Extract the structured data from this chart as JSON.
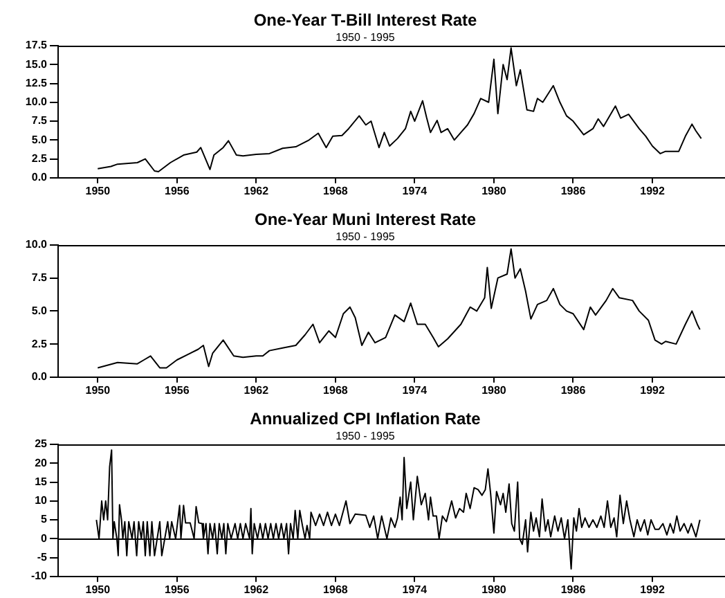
{
  "chart_data": [
    {
      "type": "line",
      "title": "One-Year T-Bill Interest Rate",
      "subtitle": "1950 - 1995",
      "color": "#000000",
      "x": [
        1950.0,
        1951,
        1951.5,
        1953,
        1953.6,
        1954.3,
        1954.6,
        1955.5,
        1956.5,
        1957.5,
        1957.8,
        1958.5,
        1958.8,
        1959.5,
        1959.9,
        1960.5,
        1961,
        1962,
        1963,
        1964,
        1965,
        1966,
        1966.7,
        1967.3,
        1967.8,
        1968.5,
        1969,
        1969.8,
        1970.3,
        1970.7,
        1971.3,
        1971.7,
        1972.1,
        1972.7,
        1973.3,
        1973.7,
        1974,
        1974.6,
        1974.9,
        1975.2,
        1975.7,
        1976,
        1976.5,
        1977,
        1977.5,
        1978,
        1978.5,
        1979,
        1979.6,
        1980.0,
        1980.3,
        1980.7,
        1981.0,
        1981.3,
        1981.7,
        1982,
        1982.5,
        1983,
        1983.3,
        1983.7,
        1984.5,
        1985,
        1985.5,
        1986,
        1986.8,
        1987.5,
        1987.9,
        1988.3,
        1989.2,
        1989.6,
        1990.2,
        1991,
        1991.5,
        1992,
        1992.6,
        1993,
        1994,
        1994.5,
        1995,
        1995.3,
        1995.5,
        1995.7
      ],
      "values": [
        1.2,
        1.5,
        1.8,
        2.0,
        2.5,
        0.9,
        0.8,
        2.0,
        3.0,
        3.4,
        4.0,
        1.1,
        3.0,
        4.0,
        4.9,
        3.0,
        2.9,
        3.1,
        3.2,
        3.9,
        4.1,
        5.0,
        5.9,
        4.0,
        5.5,
        5.6,
        6.5,
        8.2,
        7.0,
        7.5,
        4.0,
        6.0,
        4.2,
        5.2,
        6.5,
        8.8,
        7.5,
        10.2,
        8.0,
        6.0,
        7.6,
        6.0,
        6.5,
        5.0,
        6.0,
        7.0,
        8.5,
        10.5,
        10.0,
        15.7,
        8.5,
        15.0,
        13.0,
        17.2,
        12.2,
        14.3,
        9.0,
        8.8,
        10.5,
        10.0,
        12.2,
        10.0,
        8.2,
        7.5,
        5.7,
        6.5,
        7.8,
        6.8,
        9.5,
        7.9,
        8.4,
        6.5,
        5.5,
        4.2,
        3.2,
        3.5,
        3.5,
        5.5,
        7.1,
        6.2,
        5.7,
        5.2
      ],
      "xlim": [
        1947,
        1997.5
      ],
      "xticks": [
        1950,
        1956,
        1962,
        1968,
        1974,
        1980,
        1986,
        1992
      ],
      "ylim": [
        0,
        17.5
      ],
      "yticks": [
        {
          "value": 0,
          "label": "0.0"
        },
        {
          "value": 2.5,
          "label": "2.5"
        },
        {
          "value": 5,
          "label": "5.0"
        },
        {
          "value": 7.5,
          "label": "7.5"
        },
        {
          "value": 10,
          "label": "10.0"
        },
        {
          "value": 12.5,
          "label": "12.5"
        },
        {
          "value": 15,
          "label": "15.0"
        },
        {
          "value": 17.5,
          "label": "17.5"
        }
      ],
      "grid": false,
      "legend": false
    },
    {
      "type": "line",
      "title": "One-Year Muni Interest Rate",
      "subtitle": "1950 - 1995",
      "color": "#000000",
      "x": [
        1950,
        1951.5,
        1953,
        1953.5,
        1954,
        1954.7,
        1955.2,
        1956,
        1956.8,
        1957.6,
        1958,
        1958.4,
        1958.7,
        1959.5,
        1960.3,
        1961,
        1962,
        1962.5,
        1963,
        1964,
        1965,
        1965.7,
        1966.3,
        1966.8,
        1967.5,
        1968,
        1968.6,
        1969.1,
        1969.5,
        1970,
        1970.5,
        1971,
        1971.8,
        1972.5,
        1973.2,
        1973.7,
        1974.2,
        1974.8,
        1975.4,
        1975.8,
        1976.5,
        1977.5,
        1978.2,
        1978.7,
        1979.3,
        1979.5,
        1979.8,
        1980.3,
        1981,
        1981.3,
        1981.6,
        1982,
        1982.4,
        1982.8,
        1983.3,
        1984,
        1984.5,
        1985,
        1985.5,
        1986,
        1986.8,
        1987.3,
        1987.7,
        1988.5,
        1989,
        1989.5,
        1990.5,
        1991,
        1991.7,
        1992.2,
        1992.7,
        1993,
        1993.8,
        1994.5,
        1995,
        1995.4,
        1995.6
      ],
      "values": [
        0.7,
        1.1,
        1.0,
        1.3,
        1.6,
        0.7,
        0.7,
        1.3,
        1.7,
        2.1,
        2.4,
        0.8,
        1.8,
        2.8,
        1.6,
        1.5,
        1.6,
        1.6,
        2.0,
        2.2,
        2.4,
        3.2,
        4.0,
        2.6,
        3.5,
        3.0,
        4.8,
        5.3,
        4.5,
        2.4,
        3.4,
        2.6,
        3.0,
        4.7,
        4.2,
        5.6,
        4.0,
        4.0,
        3.0,
        2.3,
        2.9,
        4.0,
        5.3,
        5.0,
        6.0,
        8.3,
        5.2,
        7.5,
        7.8,
        9.7,
        7.5,
        8.2,
        6.5,
        4.4,
        5.5,
        5.8,
        6.7,
        5.5,
        5.0,
        4.8,
        3.6,
        5.3,
        4.7,
        5.8,
        6.7,
        6.0,
        5.8,
        5.0,
        4.3,
        2.8,
        2.5,
        2.7,
        2.5,
        4.0,
        5.0,
        4.0,
        3.6
      ],
      "xlim": [
        1947,
        1997.5
      ],
      "xticks": [
        1950,
        1956,
        1962,
        1968,
        1974,
        1980,
        1986,
        1992
      ],
      "ylim": [
        0,
        10
      ],
      "yticks": [
        {
          "value": 0,
          "label": "0.0"
        },
        {
          "value": 2.5,
          "label": "2.5"
        },
        {
          "value": 5,
          "label": "5.0"
        },
        {
          "value": 7.5,
          "label": "7.5"
        },
        {
          "value": 10,
          "label": "10.0"
        }
      ],
      "grid": false,
      "legend": false
    },
    {
      "type": "line",
      "title": "Annualized CPI Inflation Rate",
      "subtitle": "1950 - 1995",
      "color": "#000000",
      "x": [
        1949.9,
        1950.1,
        1950.3,
        1950.45,
        1950.6,
        1950.75,
        1950.9,
        1951.05,
        1951.15,
        1951.25,
        1951.45,
        1951.55,
        1951.65,
        1951.8,
        1951.9,
        1952.05,
        1952.2,
        1952.35,
        1952.6,
        1952.75,
        1952.95,
        1953.1,
        1953.3,
        1953.45,
        1953.6,
        1953.75,
        1953.95,
        1954.1,
        1954.3,
        1954.5,
        1954.7,
        1954.85,
        1955.3,
        1955.45,
        1955.6,
        1955.9,
        1956.2,
        1956.3,
        1956.5,
        1956.65,
        1957,
        1957.3,
        1957.45,
        1957.65,
        1957.9,
        1958,
        1958.2,
        1958.35,
        1958.5,
        1958.7,
        1958.85,
        1959.05,
        1959.2,
        1959.4,
        1959.55,
        1959.7,
        1959.85,
        1960.1,
        1960.4,
        1960.6,
        1960.8,
        1961,
        1961.2,
        1961.5,
        1961.6,
        1961.7,
        1961.85,
        1962.1,
        1962.3,
        1962.5,
        1962.7,
        1962.9,
        1963.1,
        1963.3,
        1963.5,
        1963.7,
        1963.9,
        1964.1,
        1964.3,
        1964.45,
        1964.6,
        1964.8,
        1964.95,
        1965.15,
        1965.3,
        1965.5,
        1965.7,
        1965.85,
        1966.05,
        1966.15,
        1966.5,
        1966.8,
        1967.1,
        1967.4,
        1967.7,
        1968,
        1968.3,
        1968.8,
        1969.1,
        1969.5,
        1970.3,
        1970.6,
        1970.9,
        1971.2,
        1971.5,
        1971.9,
        1972.2,
        1972.5,
        1972.7,
        1972.9,
        1973.05,
        1973.2,
        1973.4,
        1973.7,
        1973.9,
        1974.2,
        1974.5,
        1974.8,
        1975.05,
        1975.2,
        1975.4,
        1975.65,
        1975.85,
        1976.1,
        1976.4,
        1976.8,
        1977.1,
        1977.4,
        1977.7,
        1977.9,
        1978.2,
        1978.5,
        1978.8,
        1979.1,
        1979.35,
        1979.55,
        1979.75,
        1980,
        1980.2,
        1980.5,
        1980.7,
        1980.9,
        1981.15,
        1981.35,
        1981.55,
        1981.8,
        1981.95,
        1982.15,
        1982.4,
        1982.55,
        1982.8,
        1983,
        1983.2,
        1983.45,
        1983.65,
        1983.9,
        1984.1,
        1984.3,
        1984.6,
        1984.85,
        1985.1,
        1985.35,
        1985.6,
        1985.85,
        1986.05,
        1986.25,
        1986.45,
        1986.65,
        1986.9,
        1987.2,
        1987.5,
        1987.8,
        1988.1,
        1988.35,
        1988.6,
        1988.85,
        1989.1,
        1989.3,
        1989.55,
        1989.8,
        1990.05,
        1990.3,
        1990.6,
        1990.85,
        1991.1,
        1991.4,
        1991.65,
        1991.9,
        1992.2,
        1992.5,
        1992.8,
        1993.1,
        1993.35,
        1993.6,
        1993.85,
        1994.1,
        1994.4,
        1994.7,
        1994.95,
        1995.3,
        1995.6
      ],
      "values": [
        5,
        0,
        10,
        5,
        10,
        5,
        19,
        23.5,
        0,
        4.5,
        0,
        -4.5,
        9,
        5,
        0,
        4.5,
        -4.5,
        4.5,
        0,
        4.5,
        -4.5,
        4.5,
        0,
        4.5,
        -4.5,
        4.5,
        -4.5,
        4.5,
        -4.5,
        0,
        4.5,
        -4.5,
        4.5,
        0,
        4.5,
        0,
        8.8,
        0,
        8.8,
        4.2,
        4.2,
        0,
        8.5,
        4.2,
        4,
        0,
        4,
        -4,
        4,
        0,
        4,
        -4,
        4,
        0,
        4,
        -4,
        4,
        0,
        4,
        0,
        4,
        0,
        4,
        0,
        8,
        -4,
        4,
        0,
        4,
        0,
        4,
        0,
        4,
        0,
        4,
        0,
        4,
        0,
        4,
        -4,
        4,
        0,
        7.5,
        0,
        7.5,
        3.5,
        0,
        3.5,
        0,
        7,
        3.5,
        6.5,
        3.5,
        7,
        3.5,
        6.5,
        3.5,
        10,
        4,
        6.5,
        6.2,
        3,
        6,
        0,
        6,
        0,
        5.5,
        3,
        5.5,
        11,
        5,
        21.5,
        8,
        15,
        5,
        16.5,
        9,
        12,
        5,
        11,
        6,
        6,
        0,
        6,
        4.5,
        10,
        5.5,
        8,
        7,
        12,
        8,
        13.5,
        13,
        11.5,
        13,
        18.5,
        12,
        1.5,
        12.5,
        9,
        12,
        7,
        14.5,
        4,
        2,
        15,
        0,
        -1.5,
        5,
        -3.5,
        7,
        2,
        5.5,
        0.5,
        10.5,
        2,
        5,
        0.5,
        6,
        2,
        5.5,
        0,
        5,
        -8,
        5.5,
        2,
        8,
        3,
        5.5,
        3,
        5,
        3,
        6,
        3,
        10,
        3,
        5.5,
        0.5,
        11.5,
        4,
        10,
        5,
        0.5,
        5,
        2,
        5,
        1,
        5,
        2.5,
        2.5,
        4,
        1,
        4,
        1.5,
        6,
        2,
        4,
        1.5,
        4,
        0.5,
        5
      ],
      "xlim": [
        1947,
        1997.5
      ],
      "xticks": [
        1950,
        1956,
        1962,
        1968,
        1974,
        1980,
        1986,
        1992
      ],
      "ylim": [
        -10,
        25
      ],
      "yticks": [
        -10,
        -5,
        0,
        5,
        10,
        15,
        20,
        25
      ],
      "ref_lines": [
        {
          "axis": "y",
          "value": 0
        }
      ],
      "grid": false,
      "legend": false
    }
  ]
}
